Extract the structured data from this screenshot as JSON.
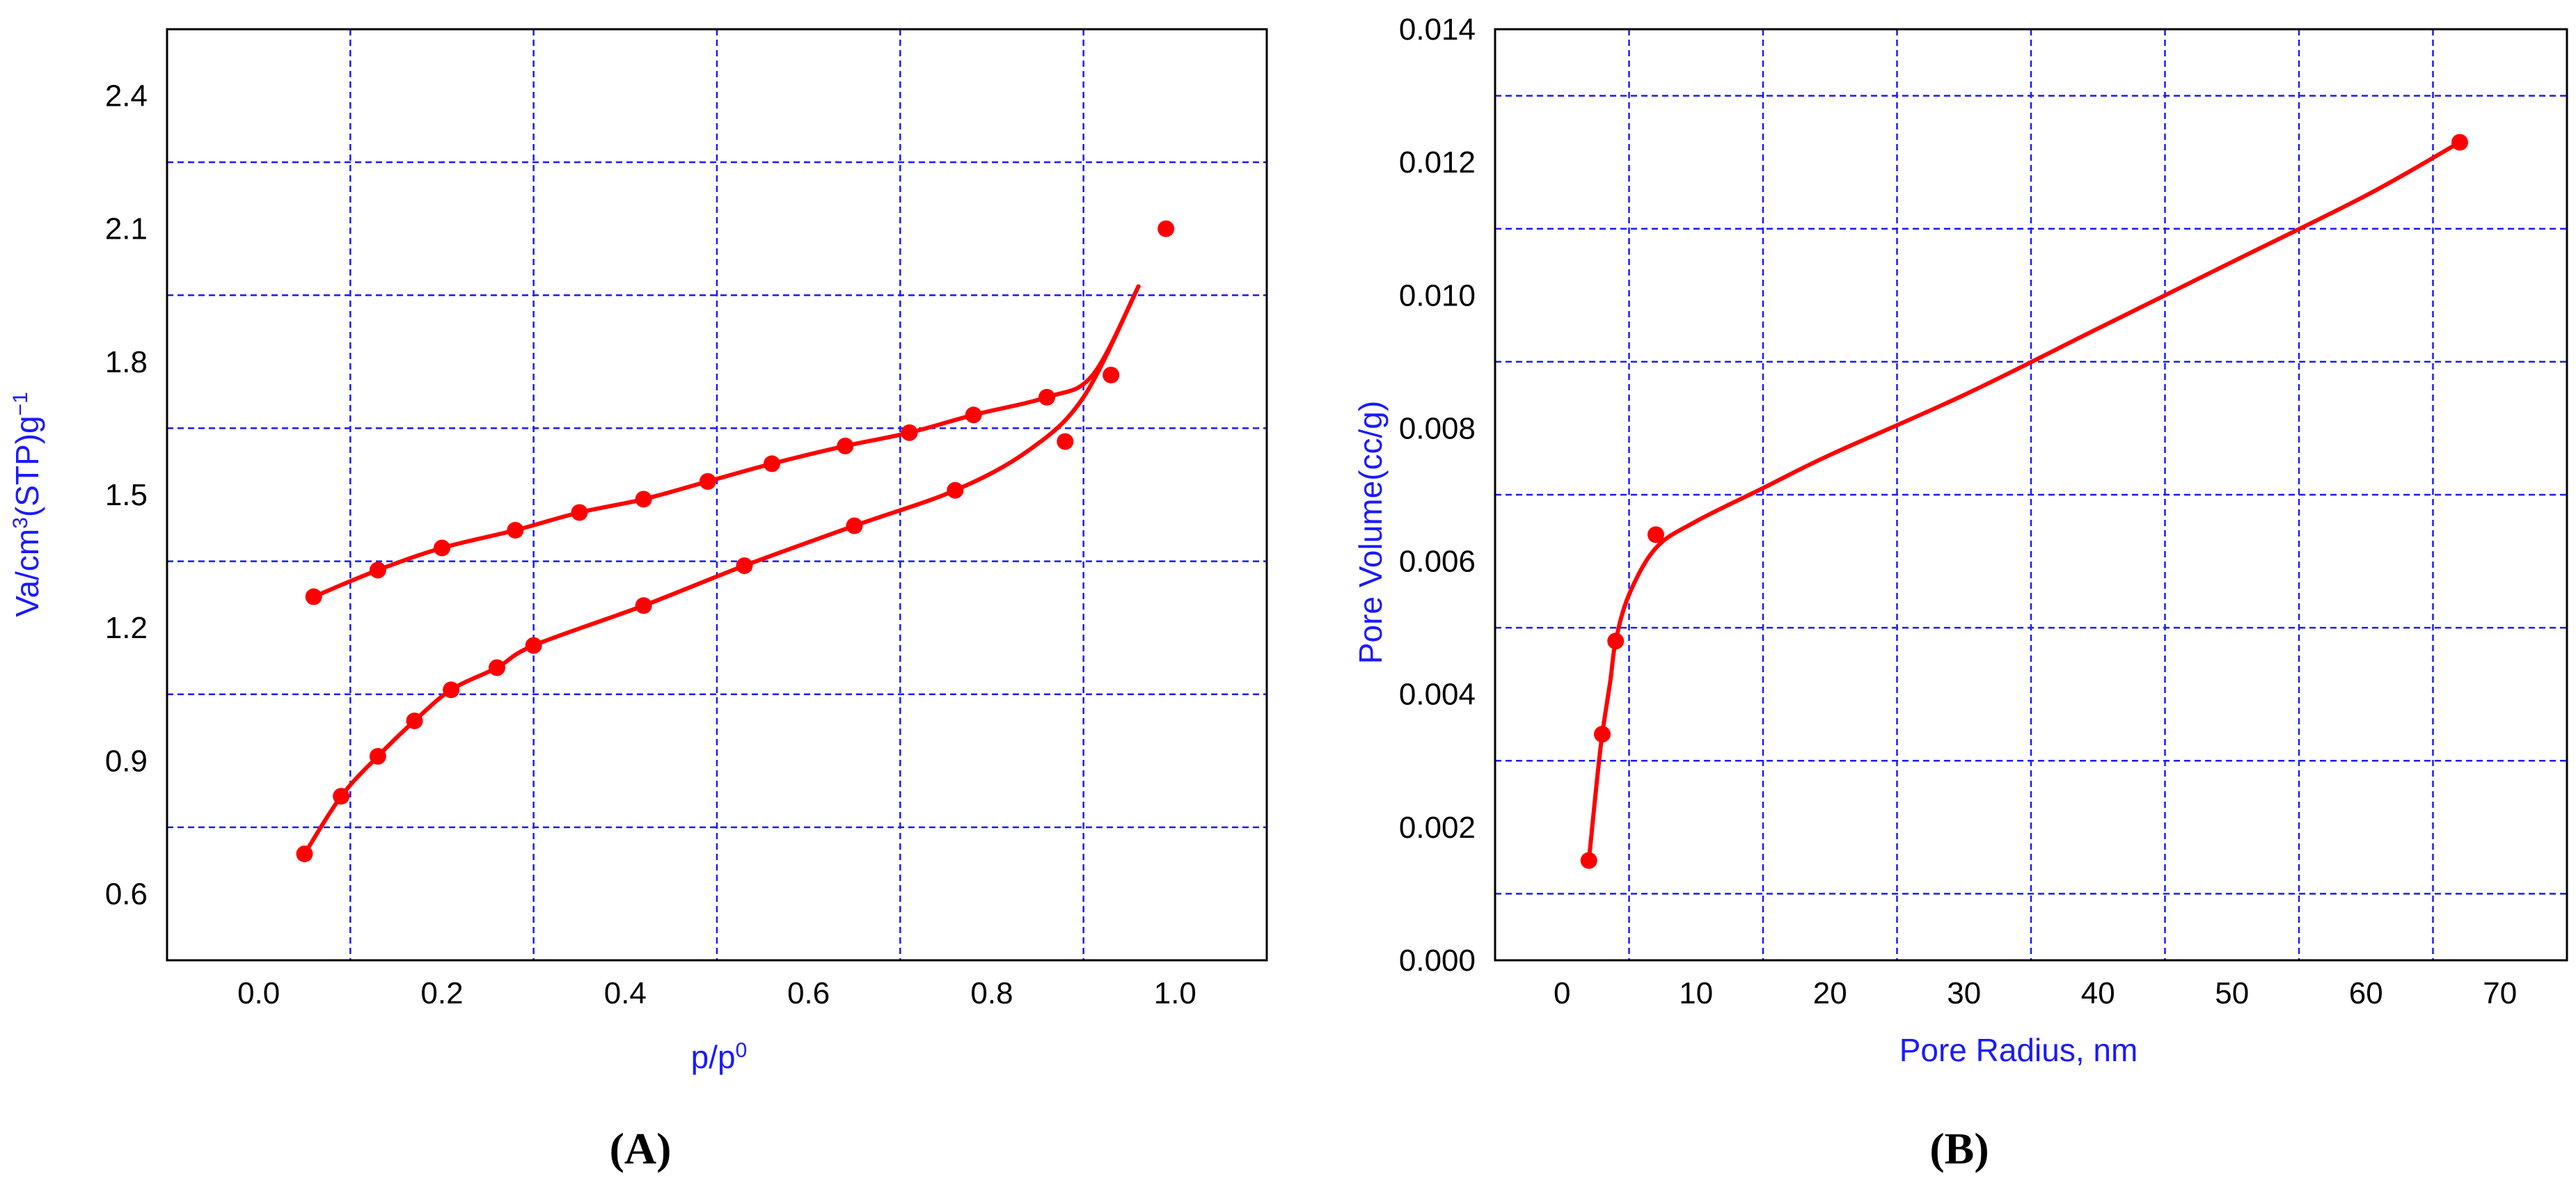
{
  "chart_data": [
    {
      "type": "scatter",
      "panel_label": "(A)",
      "xlabel_base": "p/p",
      "xlabel_sup": "0",
      "ylabel_parts": [
        "Va/cm",
        "3",
        "(STP)g",
        "−1"
      ],
      "xlim": [
        -0.1,
        1.1
      ],
      "ylim": [
        0.45,
        2.55
      ],
      "xticks": [
        "0.0",
        "0.2",
        "0.4",
        "0.6",
        "0.8",
        "1.0"
      ],
      "yticks": [
        "0.6",
        "0.9",
        "1.2",
        "1.5",
        "1.8",
        "2.1",
        "2.4"
      ],
      "grid": true,
      "series": [
        {
          "points": [
            [
              0.05,
              0.69
            ],
            [
              0.09,
              0.82
            ],
            [
              0.13,
              0.91
            ],
            [
              0.17,
              0.99
            ],
            [
              0.21,
              1.06
            ],
            [
              0.26,
              1.11
            ],
            [
              0.3,
              1.16
            ],
            [
              0.42,
              1.25
            ],
            [
              0.53,
              1.34
            ],
            [
              0.65,
              1.43
            ],
            [
              0.76,
              1.51
            ],
            [
              0.88,
              1.62
            ],
            [
              0.93,
              1.77
            ],
            [
              0.99,
              2.1
            ]
          ],
          "fit": [
            [
              0.05,
              0.69
            ],
            [
              0.09,
              0.82
            ],
            [
              0.13,
              0.91
            ],
            [
              0.17,
              0.99
            ],
            [
              0.21,
              1.06
            ],
            [
              0.26,
              1.11
            ],
            [
              0.3,
              1.16
            ],
            [
              0.42,
              1.25
            ],
            [
              0.53,
              1.34
            ],
            [
              0.65,
              1.43
            ],
            [
              0.76,
              1.51
            ],
            [
              0.84,
              1.6
            ],
            [
              0.9,
              1.72
            ],
            [
              0.96,
              1.97
            ]
          ]
        },
        {
          "points": [
            [
              0.06,
              1.27
            ],
            [
              0.13,
              1.33
            ],
            [
              0.2,
              1.38
            ],
            [
              0.28,
              1.42
            ],
            [
              0.35,
              1.46
            ],
            [
              0.42,
              1.49
            ],
            [
              0.49,
              1.53
            ],
            [
              0.56,
              1.57
            ],
            [
              0.64,
              1.61
            ],
            [
              0.71,
              1.64
            ],
            [
              0.78,
              1.68
            ],
            [
              0.86,
              1.72
            ]
          ],
          "fit": [
            [
              0.06,
              1.27
            ],
            [
              0.13,
              1.33
            ],
            [
              0.2,
              1.38
            ],
            [
              0.28,
              1.42
            ],
            [
              0.35,
              1.46
            ],
            [
              0.42,
              1.49
            ],
            [
              0.49,
              1.53
            ],
            [
              0.56,
              1.57
            ],
            [
              0.64,
              1.61
            ],
            [
              0.71,
              1.64
            ],
            [
              0.78,
              1.68
            ],
            [
              0.86,
              1.72
            ],
            [
              0.91,
              1.77
            ],
            [
              0.96,
              1.97
            ]
          ]
        }
      ]
    },
    {
      "type": "scatter",
      "panel_label": "(B)",
      "xlabel": "Pore Radius, nm",
      "ylabel": "Pore Volume(cc/g)",
      "xlim": [
        -5,
        75
      ],
      "ylim": [
        0.0,
        0.014
      ],
      "xticks": [
        "0",
        "10",
        "20",
        "30",
        "40",
        "50",
        "60",
        "70"
      ],
      "yticks": [
        "0.000",
        "0.002",
        "0.004",
        "0.006",
        "0.008",
        "0.010",
        "0.012",
        "0.014"
      ],
      "grid": true,
      "series": [
        {
          "points": [
            [
              2.0,
              0.0015
            ],
            [
              3.0,
              0.0034
            ],
            [
              4.0,
              0.0048
            ],
            [
              7.0,
              0.0064
            ],
            [
              67.0,
              0.0123
            ]
          ],
          "fit": [
            [
              2.0,
              0.0015
            ],
            [
              2.6,
              0.0027
            ],
            [
              3.0,
              0.0034
            ],
            [
              3.6,
              0.0042
            ],
            [
              4.0,
              0.0048
            ],
            [
              5.0,
              0.0055
            ],
            [
              7.0,
              0.0062
            ],
            [
              10.0,
              0.0066
            ],
            [
              15.0,
              0.0071
            ],
            [
              20.0,
              0.0076
            ],
            [
              30.0,
              0.0085
            ],
            [
              40.0,
              0.0095
            ],
            [
              50.0,
              0.0105
            ],
            [
              60.0,
              0.0115
            ],
            [
              67.0,
              0.0123
            ]
          ]
        }
      ]
    }
  ],
  "colors": {
    "series": "#ff0000",
    "grid": "#1a1aff",
    "axis_label": "#1a1aff",
    "frame": "#000000"
  }
}
